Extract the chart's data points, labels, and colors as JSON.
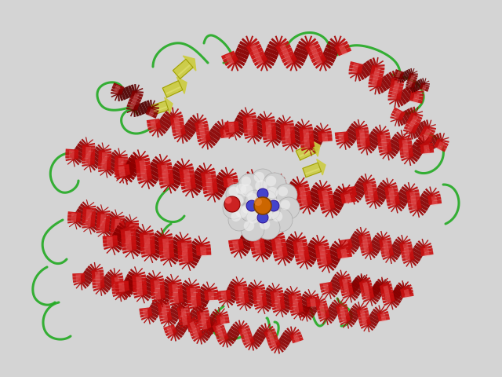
{
  "background_color": "#d4d4d4",
  "fig_width": 6.4,
  "fig_height": 4.8,
  "dpi": 100,
  "helix_color_main": "#cc1111",
  "helix_color_dark": "#8b0000",
  "helix_color_light": "#e87777",
  "sheet_color": "#cccc44",
  "loop_color": "#22aa22",
  "iron_color": "#cc6600",
  "nitrogen_color": "#4444cc"
}
